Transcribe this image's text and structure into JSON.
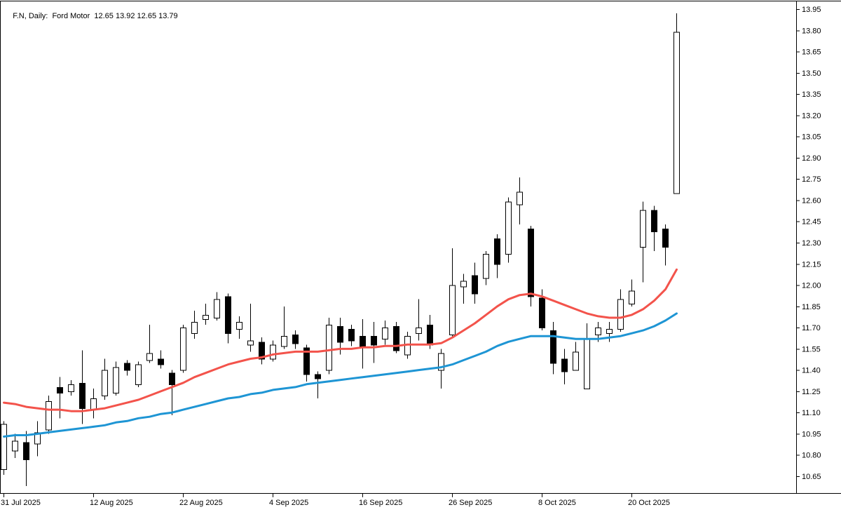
{
  "header": {
    "title": "F.N, Daily:  Ford Motor  12.65 13.92 12.65 13.79",
    "symbol": "F.N",
    "period": "Daily",
    "description": "Ford Motor",
    "ohlc_display": {
      "open": "12.65",
      "high": "13.92",
      "low": "12.65",
      "close": "13.79"
    }
  },
  "chart_data": {
    "type": "candlestick",
    "title": "F.N, Daily: Ford Motor 12.65 13.92 12.65 13.79",
    "xlabel": "",
    "ylabel": "",
    "grid": false,
    "background": "#ffffff",
    "y_axis": {
      "max": 13.95,
      "min": 10.65,
      "step": 0.15,
      "labels": [
        "13.95",
        "13.80",
        "13.65",
        "13.50",
        "13.35",
        "13.20",
        "13.05",
        "12.90",
        "12.75",
        "12.60",
        "12.45",
        "12.30",
        "12.15",
        "12.00",
        "11.85",
        "11.70",
        "11.55",
        "11.40",
        "11.25",
        "11.10",
        "10.95",
        "10.80",
        "10.65"
      ]
    },
    "x_ticks": [
      {
        "index": 0,
        "label": "31 Jul 2025"
      },
      {
        "index": 8,
        "label": "12 Aug 2025"
      },
      {
        "index": 16,
        "label": "22 Aug 2025"
      },
      {
        "index": 24,
        "label": "4 Sep 2025"
      },
      {
        "index": 32,
        "label": "16 Sep 2025"
      },
      {
        "index": 40,
        "label": "26 Sep 2025"
      },
      {
        "index": 48,
        "label": "8 Oct 2025"
      },
      {
        "index": 56,
        "label": "20 Oct 2025"
      }
    ],
    "candles_format": [
      "open",
      "high",
      "low",
      "close"
    ],
    "candles": [
      [
        10.7,
        11.04,
        10.66,
        11.02
      ],
      [
        10.83,
        10.95,
        10.78,
        10.9
      ],
      [
        10.89,
        10.97,
        10.58,
        10.77
      ],
      [
        10.88,
        11.04,
        10.79,
        10.96
      ],
      [
        10.98,
        11.22,
        10.95,
        11.18
      ],
      [
        11.28,
        11.35,
        11.06,
        11.24
      ],
      [
        11.25,
        11.33,
        11.22,
        11.3
      ],
      [
        11.31,
        11.54,
        11.02,
        11.13
      ],
      [
        11.12,
        11.27,
        11.06,
        11.2
      ],
      [
        11.22,
        11.48,
        11.19,
        11.4
      ],
      [
        11.24,
        11.46,
        11.22,
        11.42
      ],
      [
        11.45,
        11.47,
        11.36,
        11.4
      ],
      [
        11.3,
        11.46,
        11.28,
        11.44
      ],
      [
        11.47,
        11.72,
        11.45,
        11.52
      ],
      [
        11.48,
        11.54,
        11.41,
        11.44
      ],
      [
        11.38,
        11.4,
        11.08,
        11.3
      ],
      [
        11.4,
        11.72,
        11.38,
        11.7
      ],
      [
        11.66,
        11.82,
        11.62,
        11.74
      ],
      [
        11.76,
        11.87,
        11.72,
        11.79
      ],
      [
        11.77,
        11.95,
        11.75,
        11.9
      ],
      [
        11.92,
        11.94,
        11.59,
        11.66
      ],
      [
        11.69,
        11.78,
        11.62,
        11.74
      ],
      [
        11.58,
        11.87,
        11.53,
        11.61
      ],
      [
        11.6,
        11.63,
        11.44,
        11.48
      ],
      [
        11.48,
        11.61,
        11.46,
        11.58
      ],
      [
        11.57,
        11.85,
        11.55,
        11.64
      ],
      [
        11.65,
        11.68,
        11.55,
        11.59
      ],
      [
        11.56,
        11.58,
        11.32,
        11.37
      ],
      [
        11.37,
        11.39,
        11.2,
        11.34
      ],
      [
        11.4,
        11.77,
        11.37,
        11.72
      ],
      [
        11.71,
        11.77,
        11.51,
        11.6
      ],
      [
        11.69,
        11.72,
        11.57,
        11.61
      ],
      [
        11.64,
        11.76,
        11.41,
        11.56
      ],
      [
        11.64,
        11.74,
        11.45,
        11.58
      ],
      [
        11.62,
        11.75,
        11.58,
        11.7
      ],
      [
        11.71,
        11.74,
        11.52,
        11.54
      ],
      [
        11.51,
        11.67,
        11.48,
        11.64
      ],
      [
        11.66,
        11.9,
        11.61,
        11.7
      ],
      [
        11.72,
        11.79,
        11.55,
        11.58
      ],
      [
        11.4,
        11.55,
        11.27,
        11.52
      ],
      [
        11.65,
        12.26,
        11.63,
        12.0
      ],
      [
        11.99,
        12.08,
        11.87,
        12.03
      ],
      [
        12.07,
        12.16,
        11.87,
        11.94
      ],
      [
        12.05,
        12.24,
        12.0,
        12.22
      ],
      [
        12.33,
        12.36,
        12.05,
        12.15
      ],
      [
        12.22,
        12.62,
        12.16,
        12.59
      ],
      [
        12.57,
        12.76,
        12.43,
        12.66
      ],
      [
        12.4,
        12.42,
        11.85,
        11.92
      ],
      [
        11.91,
        11.97,
        11.68,
        11.7
      ],
      [
        11.68,
        11.74,
        11.37,
        11.45
      ],
      [
        11.48,
        11.55,
        11.3,
        11.39
      ],
      [
        11.4,
        11.6,
        11.4,
        11.53
      ],
      [
        11.27,
        11.73,
        11.27,
        11.62
      ],
      [
        11.65,
        11.74,
        11.6,
        11.7
      ],
      [
        11.66,
        11.74,
        11.6,
        11.69
      ],
      [
        11.69,
        11.97,
        11.67,
        11.9
      ],
      [
        11.87,
        12.04,
        11.85,
        11.96
      ],
      [
        12.27,
        12.59,
        12.02,
        12.53
      ],
      [
        12.53,
        12.56,
        12.24,
        12.38
      ],
      [
        12.4,
        12.43,
        12.14,
        12.27
      ],
      [
        12.65,
        13.92,
        12.65,
        13.79
      ]
    ],
    "overlays": [
      {
        "name": "ma-slow",
        "color": "#1e95d4",
        "values": [
          10.93,
          10.94,
          10.94,
          10.95,
          10.96,
          10.97,
          10.98,
          10.99,
          11.0,
          11.01,
          11.03,
          11.04,
          11.06,
          11.07,
          11.09,
          11.1,
          11.12,
          11.14,
          11.16,
          11.18,
          11.2,
          11.21,
          11.23,
          11.24,
          11.26,
          11.27,
          11.28,
          11.3,
          11.31,
          11.32,
          11.33,
          11.34,
          11.35,
          11.36,
          11.37,
          11.38,
          11.39,
          11.4,
          11.41,
          11.42,
          11.44,
          11.47,
          11.5,
          11.53,
          11.57,
          11.6,
          11.62,
          11.64,
          11.64,
          11.64,
          11.63,
          11.62,
          11.62,
          11.62,
          11.63,
          11.64,
          11.66,
          11.68,
          11.71,
          11.75,
          11.8
        ]
      },
      {
        "name": "ma-fast",
        "color": "#f3534b",
        "values": [
          11.17,
          11.16,
          11.14,
          11.13,
          11.12,
          11.12,
          11.11,
          11.11,
          11.12,
          11.13,
          11.15,
          11.17,
          11.19,
          11.22,
          11.25,
          11.28,
          11.31,
          11.35,
          11.38,
          11.41,
          11.44,
          11.46,
          11.48,
          11.49,
          11.51,
          11.52,
          11.53,
          11.53,
          11.53,
          11.54,
          11.55,
          11.55,
          11.56,
          11.56,
          11.57,
          11.57,
          11.58,
          11.58,
          11.58,
          11.59,
          11.63,
          11.68,
          11.73,
          11.79,
          11.85,
          11.9,
          11.93,
          11.94,
          11.92,
          11.89,
          11.86,
          11.83,
          11.8,
          11.78,
          11.77,
          11.77,
          11.79,
          11.83,
          11.89,
          11.97,
          12.11
        ]
      }
    ],
    "colors": {
      "bull_fill": "#ffffff",
      "bear_fill": "#000000",
      "outline": "#000000",
      "axis_line": "#000000",
      "background": "#ffffff"
    }
  }
}
